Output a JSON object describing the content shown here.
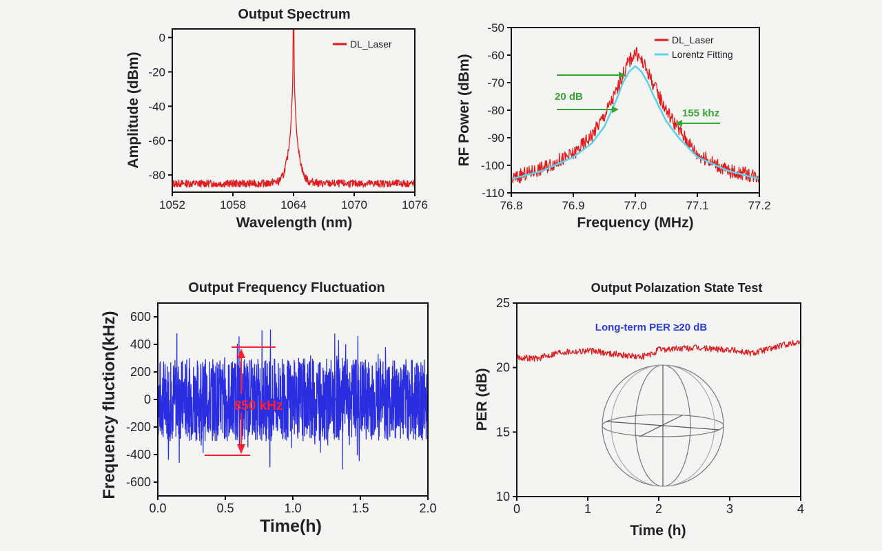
{
  "chart_data": [
    {
      "type": "line",
      "title": "Output Spectrum",
      "xlabel": "Wavelength (nm)",
      "ylabel": "Amplitude (dBm)",
      "xlim": [
        1052,
        1076
      ],
      "ylim": [
        -90,
        5
      ],
      "xticks": [
        1052,
        1058,
        1064,
        1070,
        1076
      ],
      "yticks": [
        0,
        -20,
        -40,
        -60,
        -80
      ],
      "legend_position": "top-right",
      "series": [
        {
          "name": "DL_Laser",
          "color": "#e41a1c",
          "x": [
            1052,
            1055,
            1058,
            1060,
            1061.5,
            1062,
            1062.5,
            1063,
            1063.4,
            1063.7,
            1063.9,
            1064,
            1064.1,
            1064.3,
            1064.6,
            1065,
            1065.5,
            1066,
            1066.5,
            1068,
            1070,
            1073,
            1076
          ],
          "y": [
            -85,
            -85,
            -85,
            -85,
            -85,
            -84,
            -84,
            -80,
            -70,
            -55,
            -30,
            5,
            -30,
            -55,
            -70,
            -80,
            -84,
            -84,
            -85,
            -85,
            -85,
            -85,
            -85
          ]
        }
      ]
    },
    {
      "type": "line",
      "title": "",
      "xlabel": "Frequency (MHz)",
      "ylabel": "RF Power (dBm)",
      "xlim": [
        76.8,
        77.2
      ],
      "ylim": [
        -110,
        -50
      ],
      "xticks": [
        76.8,
        76.9,
        77.0,
        77.1,
        77.2
      ],
      "yticks": [
        -50,
        -60,
        -70,
        -80,
        -90,
        -100,
        -110
      ],
      "legend_position": "top-right",
      "series": [
        {
          "name": "DL_Laser",
          "color": "#e41a1c",
          "x": [
            76.8,
            76.85,
            76.9,
            76.93,
            76.95,
            76.97,
            76.98,
            76.99,
            77.0,
            77.01,
            77.02,
            77.03,
            77.05,
            77.07,
            77.1,
            77.15,
            77.2
          ],
          "y": [
            -105,
            -101,
            -96,
            -89,
            -82,
            -73,
            -67,
            -62,
            -59,
            -62,
            -66,
            -71,
            -80,
            -87,
            -96,
            -102,
            -104
          ]
        },
        {
          "name": "Lorentz Fitting",
          "color": "#5ad2ec",
          "x": [
            76.8,
            76.85,
            76.9,
            76.93,
            76.95,
            76.97,
            76.98,
            76.99,
            77.0,
            77.01,
            77.02,
            77.03,
            77.05,
            77.07,
            77.1,
            77.15,
            77.2
          ],
          "y": [
            -105,
            -102,
            -97,
            -92,
            -86,
            -76,
            -70,
            -66,
            -64,
            -66,
            -70,
            -75,
            -84,
            -90,
            -97,
            -102,
            -105
          ]
        }
      ],
      "annotations": [
        {
          "text": "20 dB",
          "color": "#3aa335"
        },
        {
          "text": "155 khz",
          "color": "#3aa335"
        }
      ]
    },
    {
      "type": "line",
      "title": "Output Frequency Fluctuation",
      "xlabel": "Time(h)",
      "ylabel": "Frequency fluction(kHz)",
      "xlim": [
        0,
        2.0
      ],
      "ylim": [
        -700,
        700
      ],
      "xticks": [
        "0.0",
        "0.5",
        "1.0",
        "1.5",
        "2.0"
      ],
      "yticks": [
        600,
        400,
        200,
        0,
        -200,
        -400,
        -600
      ],
      "series": [
        {
          "name": "",
          "color": "#2a2ee0",
          "x": [
            0,
            2.0
          ],
          "y_mean": 0,
          "y_typical_range": [
            -250,
            250
          ],
          "y_extremes": [
            -520,
            520
          ]
        }
      ],
      "annotations": [
        {
          "text": "850 kHz",
          "color": "#ff1f2f",
          "from": 400,
          "to": -450
        }
      ]
    },
    {
      "type": "line",
      "title": "Output Polaızation State Test",
      "xlabel": "Time (h)",
      "ylabel": "PER (dB)",
      "xlim": [
        0,
        4
      ],
      "ylim": [
        10,
        25
      ],
      "xticks": [
        0,
        1,
        2,
        3,
        4
      ],
      "yticks": [
        25,
        20,
        15,
        10
      ],
      "series": [
        {
          "name": "",
          "color": "#e41a1c",
          "x": [
            0,
            0.3,
            0.6,
            1.0,
            1.3,
            1.6,
            1.7,
            1.9,
            2.0,
            2.5,
            3.0,
            3.3,
            3.6,
            3.8,
            4.0
          ],
          "y": [
            20.8,
            20.7,
            21.2,
            21.3,
            21.1,
            20.9,
            20.8,
            21.0,
            21.4,
            21.5,
            21.4,
            21.1,
            21.5,
            21.8,
            22.0
          ]
        }
      ],
      "annotations": [
        {
          "text": "Long-term PER ≥20 dB",
          "color": "#2d3cd8"
        }
      ]
    }
  ]
}
